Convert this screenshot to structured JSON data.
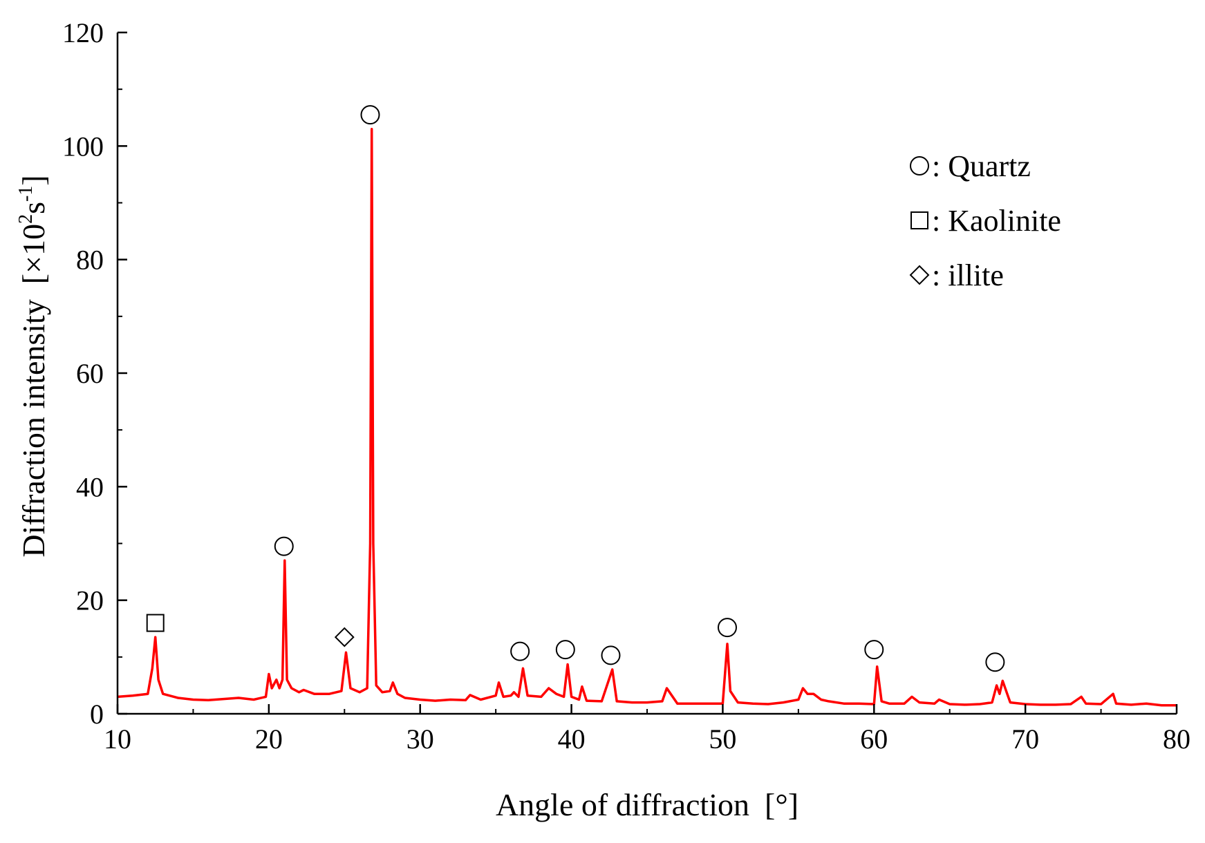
{
  "chart_data": {
    "type": "line",
    "xlabel": "Angle of diffraction",
    "xlabel_unit": "[°]",
    "ylabel": "Diffraction intensity",
    "ylabel_unit": "[×10²s⁻¹]",
    "ylabel_unit_prefix": "[×10",
    "ylabel_unit_sup1": "2",
    "ylabel_unit_mid": "s",
    "ylabel_unit_sup2": "-1",
    "ylabel_unit_suffix": "]",
    "xlim": [
      10,
      80
    ],
    "ylim": [
      0,
      120
    ],
    "x_ticks": [
      "10",
      "20",
      "30",
      "40",
      "50",
      "60",
      "70",
      "80"
    ],
    "y_ticks": [
      "0",
      "20",
      "40",
      "60",
      "80",
      "100",
      "120"
    ],
    "grid": false,
    "legend_position": "top-right",
    "line_color": "#ff0000",
    "series": [
      {
        "x": [
          10,
          11,
          12,
          12.3,
          12.5,
          12.7,
          13,
          14,
          15,
          16,
          17,
          18,
          19,
          19.8,
          20.0,
          20.2,
          20.5,
          20.7,
          20.9,
          21.05,
          21.2,
          21.5,
          22,
          22.3,
          23,
          24,
          24.8,
          25.1,
          25.4,
          26,
          26.5,
          26.7,
          26.8,
          26.9,
          27.1,
          27.5,
          28,
          28.2,
          28.5,
          29,
          30,
          31,
          32,
          33,
          33.3,
          34,
          35,
          35.2,
          35.5,
          36,
          36.2,
          36.5,
          36.8,
          37.1,
          38,
          38.5,
          39,
          39.5,
          39.75,
          40,
          40.5,
          40.7,
          41,
          42,
          42.7,
          43,
          44,
          45,
          46,
          46.3,
          47,
          48,
          49,
          50,
          50.3,
          50.5,
          51,
          52,
          53,
          54,
          55,
          55.3,
          55.6,
          56,
          56.5,
          57,
          58,
          59,
          60,
          60.2,
          60.5,
          61,
          62,
          62.5,
          63,
          64,
          64.3,
          65,
          66,
          67,
          67.8,
          68.1,
          68.3,
          68.5,
          68.8,
          69,
          70,
          71,
          72,
          73,
          73.7,
          74,
          75,
          75.8,
          76,
          77,
          78,
          79,
          80
        ],
        "y": [
          3,
          3.2,
          3.5,
          8,
          13.5,
          6,
          3.5,
          2.8,
          2.5,
          2.4,
          2.6,
          2.8,
          2.5,
          3,
          7,
          4.5,
          6,
          4.5,
          6,
          27,
          6,
          4.5,
          3.8,
          4.2,
          3.5,
          3.5,
          4,
          10.8,
          4.5,
          3.8,
          4.5,
          30,
          103,
          30,
          5,
          3.8,
          4,
          5.5,
          3.5,
          2.8,
          2.5,
          2.3,
          2.5,
          2.4,
          3.3,
          2.5,
          3.2,
          5.5,
          3,
          3.2,
          3.8,
          3,
          8,
          3.2,
          3,
          4.5,
          3.5,
          3,
          8.7,
          3,
          2.5,
          4.8,
          2.3,
          2.2,
          7.8,
          2.2,
          2,
          2,
          2.2,
          4.5,
          1.8,
          1.8,
          1.8,
          1.8,
          12.3,
          4,
          2,
          1.8,
          1.7,
          2,
          2.5,
          4.5,
          3.5,
          3.5,
          2.5,
          2.2,
          1.8,
          1.8,
          1.7,
          8.3,
          2.2,
          1.8,
          1.8,
          3,
          2,
          1.8,
          2.5,
          1.7,
          1.6,
          1.7,
          2,
          5,
          3.5,
          5.8,
          3.5,
          2,
          1.7,
          1.6,
          1.6,
          1.7,
          3,
          1.8,
          1.7,
          3.5,
          1.8,
          1.6,
          1.8,
          1.5,
          1.5
        ]
      }
    ],
    "legend": [
      {
        "marker": "circle",
        "label": ": Quartz"
      },
      {
        "marker": "square",
        "label": ": Kaolinite"
      },
      {
        "marker": "diamond",
        "label": ": illite"
      }
    ],
    "annotations": [
      {
        "marker": "square",
        "x": 12.5,
        "y": 16
      },
      {
        "marker": "circle",
        "x": 21.0,
        "y": 29.5
      },
      {
        "marker": "diamond",
        "x": 25.0,
        "y": 13.5
      },
      {
        "marker": "circle",
        "x": 26.7,
        "y": 105.5
      },
      {
        "marker": "circle",
        "x": 36.6,
        "y": 11
      },
      {
        "marker": "circle",
        "x": 39.6,
        "y": 11.3
      },
      {
        "marker": "circle",
        "x": 42.6,
        "y": 10.3
      },
      {
        "marker": "circle",
        "x": 50.3,
        "y": 15.2
      },
      {
        "marker": "circle",
        "x": 60.0,
        "y": 11.3
      },
      {
        "marker": "circle",
        "x": 68.0,
        "y": 9.1
      }
    ]
  }
}
